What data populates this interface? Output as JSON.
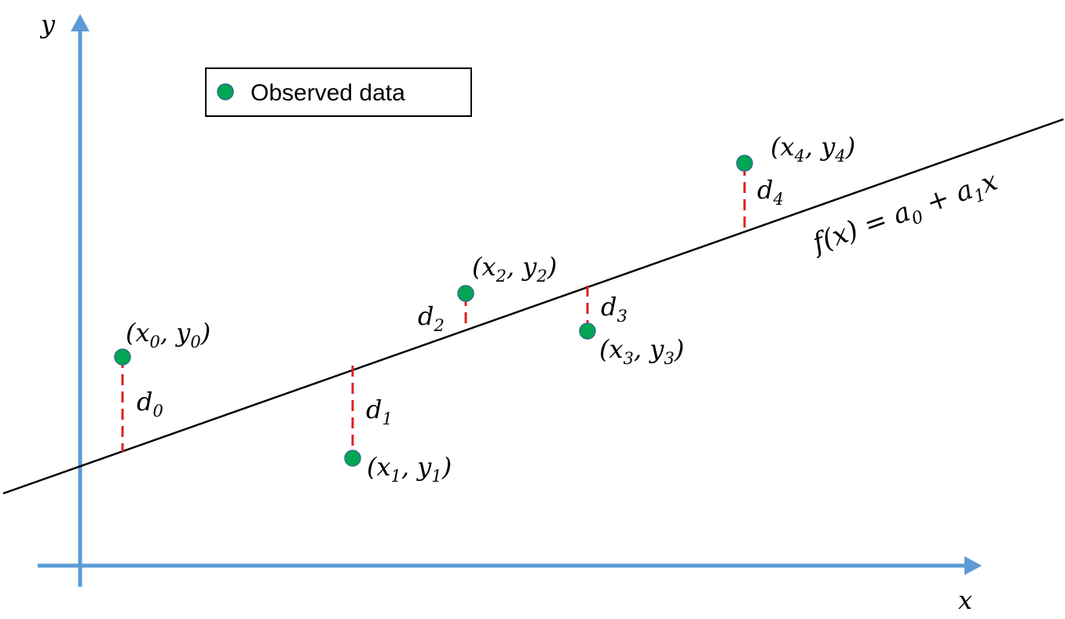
{
  "legend": {
    "label": "Observed data",
    "marker_color": "#00A651"
  },
  "axes": {
    "x_label": "x",
    "y_label": "y",
    "color": "#5B9BD5"
  },
  "fit_line": {
    "label_parts": [
      "f(x) = a",
      "0",
      " + a",
      "1",
      "x"
    ]
  },
  "residual_color": "#E02020",
  "points": [
    {
      "name": "point-0",
      "label": "(x",
      "sub1": "0",
      "mid": ", y",
      "sub2": "0",
      "end": ")",
      "d": "d",
      "d_sub": "0"
    },
    {
      "name": "point-1",
      "label": "(x",
      "sub1": "1",
      "mid": ", y",
      "sub2": "1",
      "end": ")",
      "d": "d",
      "d_sub": "1"
    },
    {
      "name": "point-2",
      "label": "(x",
      "sub1": "2",
      "mid": ", y",
      "sub2": "2",
      "end": ")",
      "d": "d",
      "d_sub": "2"
    },
    {
      "name": "point-3",
      "label": "(x",
      "sub1": "3",
      "mid": ", y",
      "sub2": "3",
      "end": ")",
      "d": "d",
      "d_sub": "3"
    },
    {
      "name": "point-4",
      "label": "(x",
      "sub1": "4",
      "mid": ", y",
      "sub2": "4",
      "end": ")",
      "d": "d",
      "d_sub": "4"
    }
  ]
}
